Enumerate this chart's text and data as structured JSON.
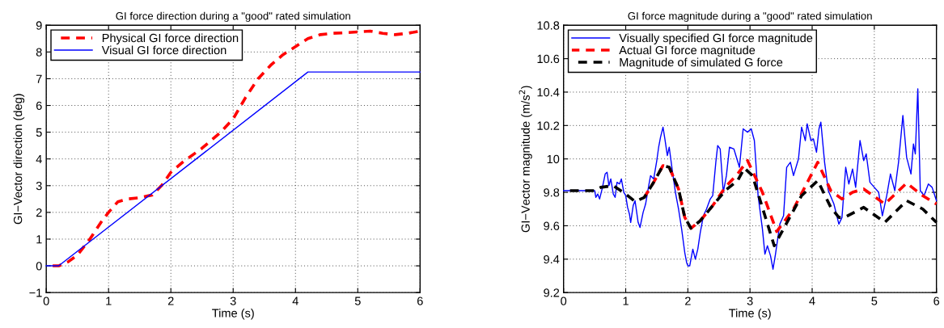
{
  "chart_data": [
    {
      "type": "line",
      "title": "GI force direction during a \"good\" rated simulation",
      "xlabel": "Time (s)",
      "ylabel": "GI−Vector direction (deg)",
      "xlim": [
        0,
        6
      ],
      "ylim": [
        -1,
        9
      ],
      "xticks": [
        0,
        1,
        2,
        3,
        4,
        5,
        6
      ],
      "yticks": [
        {
          "value": -1,
          "label": "−1"
        },
        0,
        1,
        2,
        3,
        4,
        5,
        6,
        7,
        8,
        9
      ],
      "grid": true,
      "legend": "top left",
      "series": [
        {
          "name": "Physical GI force direction",
          "color": "#ff0000",
          "line_style": "dashed",
          "x": [
            0,
            0.2,
            0.35,
            0.5,
            0.7,
            0.9,
            1.0,
            1.15,
            1.3,
            1.5,
            1.7,
            1.85,
            2.0,
            2.2,
            2.5,
            2.8,
            3.0,
            3.2,
            3.4,
            3.6,
            3.8,
            4.0,
            4.2,
            4.4,
            4.6,
            4.8,
            5.0,
            5.2,
            5.4,
            5.6,
            5.8,
            6.0
          ],
          "values": [
            0,
            0,
            0.15,
            0.4,
            1.0,
            1.7,
            2.0,
            2.4,
            2.5,
            2.55,
            2.65,
            3.0,
            3.5,
            3.9,
            4.4,
            5.0,
            5.5,
            6.3,
            7.0,
            7.5,
            7.9,
            8.2,
            8.5,
            8.65,
            8.7,
            8.72,
            8.75,
            8.78,
            8.7,
            8.65,
            8.7,
            8.78
          ]
        },
        {
          "name": "Visual GI force direction",
          "color": "#0000ff",
          "line_style": "solid",
          "x": [
            0,
            0.2,
            4.2,
            6
          ],
          "values": [
            0,
            0,
            7.25,
            7.25
          ]
        }
      ]
    },
    {
      "type": "line",
      "title": "GI force magnitude during a \"good\" rated simulation",
      "xlabel": "Time (s)",
      "ylabel": "GI−Vector magnitude (m/s$^{2}$)",
      "xlim": [
        0,
        6
      ],
      "ylim": [
        9.2,
        10.8
      ],
      "xticks": [
        0,
        1,
        2,
        3,
        4,
        5,
        6
      ],
      "yticks": [
        9.2,
        9.4,
        9.6,
        9.8,
        10,
        10.2,
        10.4,
        10.6,
        10.8
      ],
      "grid": true,
      "legend": "top left",
      "series": [
        {
          "name": "Visually specified GI force magnitude",
          "color": "#0000ff",
          "line_style": "solid",
          "x": [
            0,
            0.5,
            0.52,
            0.55,
            0.58,
            0.62,
            0.67,
            0.7,
            0.73,
            0.76,
            0.8,
            0.83,
            0.86,
            0.9,
            0.93,
            0.97,
            1.0,
            1.03,
            1.06,
            1.08,
            1.12,
            1.15,
            1.2,
            1.23,
            1.28,
            1.32,
            1.37,
            1.4,
            1.45,
            1.5,
            1.53,
            1.56,
            1.6,
            1.63,
            1.67,
            1.7,
            1.75,
            1.8,
            1.85,
            1.9,
            1.95,
            1.98,
            2.0,
            2.03,
            2.06,
            2.08,
            2.12,
            2.16,
            2.2,
            2.25,
            2.3,
            2.36,
            2.4,
            2.45,
            2.48,
            2.52,
            2.57,
            2.62,
            2.67,
            2.74,
            2.83,
            2.89,
            2.96,
            3.02,
            3.07,
            3.13,
            3.2,
            3.24,
            3.28,
            3.33,
            3.37,
            3.41,
            3.48,
            3.54,
            3.59,
            3.65,
            3.7,
            3.78,
            3.83,
            3.89,
            3.92,
            3.98,
            4.02,
            4.07,
            4.11,
            4.14,
            4.2,
            4.26,
            4.35,
            4.43,
            4.48,
            4.54,
            4.59,
            4.65,
            4.7,
            4.77,
            4.83,
            4.87,
            4.93,
            5.0,
            5.07,
            5.13,
            5.2,
            5.26,
            5.33,
            5.39,
            5.46,
            5.52,
            5.59,
            5.63,
            5.66,
            5.7,
            5.74,
            5.8,
            5.87,
            5.93,
            6.0
          ],
          "values": [
            9.81,
            9.81,
            9.77,
            9.79,
            9.76,
            9.82,
            9.91,
            9.92,
            9.84,
            9.88,
            9.79,
            9.77,
            9.86,
            9.85,
            9.88,
            9.8,
            9.78,
            9.71,
            9.67,
            9.62,
            9.72,
            9.75,
            9.62,
            9.59,
            9.68,
            9.73,
            9.84,
            9.9,
            9.88,
            9.99,
            10.07,
            10.13,
            10.19,
            10.12,
            10.02,
            10.07,
            9.93,
            9.8,
            9.7,
            9.58,
            9.44,
            9.38,
            9.36,
            9.36,
            9.42,
            9.46,
            9.4,
            9.46,
            9.56,
            9.66,
            9.7,
            9.76,
            9.78,
            9.98,
            10.08,
            10.06,
            9.8,
            9.9,
            10.07,
            10.06,
            9.95,
            10.18,
            10.16,
            10.18,
            10.11,
            9.78,
            9.58,
            9.43,
            9.48,
            9.42,
            9.34,
            9.43,
            9.61,
            9.66,
            9.95,
            9.98,
            9.9,
            10.0,
            10.19,
            10.11,
            10.21,
            10.11,
            10.12,
            10.04,
            10.18,
            10.22,
            9.98,
            9.81,
            9.73,
            9.61,
            9.65,
            9.95,
            9.85,
            9.94,
            9.83,
            10.11,
            9.99,
            10.03,
            9.86,
            9.83,
            9.8,
            9.66,
            9.78,
            9.91,
            9.81,
            9.98,
            10.26,
            10.01,
            9.91,
            10.09,
            10.03,
            10.42,
            9.81,
            9.78,
            9.85,
            9.83,
            9.75
          ]
        },
        {
          "name": "Actual GI force magnitude",
          "color": "#ff0000",
          "line_style": "dashed",
          "x": [
            1.3,
            1.45,
            1.6,
            1.7,
            1.85,
            1.95,
            2.05,
            2.2,
            2.4,
            2.6,
            2.8,
            2.96,
            3.2,
            3.43,
            3.7,
            4.09,
            4.3,
            4.48,
            4.65,
            4.83,
            5.17,
            5.52,
            5.78,
            6.0
          ],
          "values": [
            9.77,
            9.86,
            9.96,
            9.95,
            9.82,
            9.65,
            9.585,
            9.63,
            9.72,
            9.83,
            9.91,
            9.99,
            9.8,
            9.565,
            9.7,
            9.98,
            9.81,
            9.76,
            9.8,
            9.82,
            9.73,
            9.855,
            9.78,
            9.73
          ]
        },
        {
          "name": "Magnitude of simulated G force",
          "color": "#000000",
          "line_style": "dashed",
          "x": [
            0,
            0.5,
            0.6,
            0.8,
            1.0,
            1.15,
            1.3,
            1.45,
            1.6,
            1.7,
            1.85,
            1.95,
            2.05,
            2.2,
            2.4,
            2.6,
            2.8,
            2.91,
            3.04,
            3.39,
            3.83,
            4.09,
            4.3,
            4.43,
            4.52,
            4.83,
            5.17,
            5.52,
            5.78,
            6.0
          ],
          "values": [
            9.81,
            9.81,
            9.83,
            9.84,
            9.79,
            9.745,
            9.77,
            9.86,
            9.96,
            9.95,
            9.82,
            9.65,
            9.585,
            9.63,
            9.72,
            9.81,
            9.87,
            9.945,
            9.9,
            9.48,
            9.78,
            9.87,
            9.71,
            9.65,
            9.65,
            9.71,
            9.62,
            9.75,
            9.7,
            9.62
          ]
        }
      ]
    }
  ]
}
